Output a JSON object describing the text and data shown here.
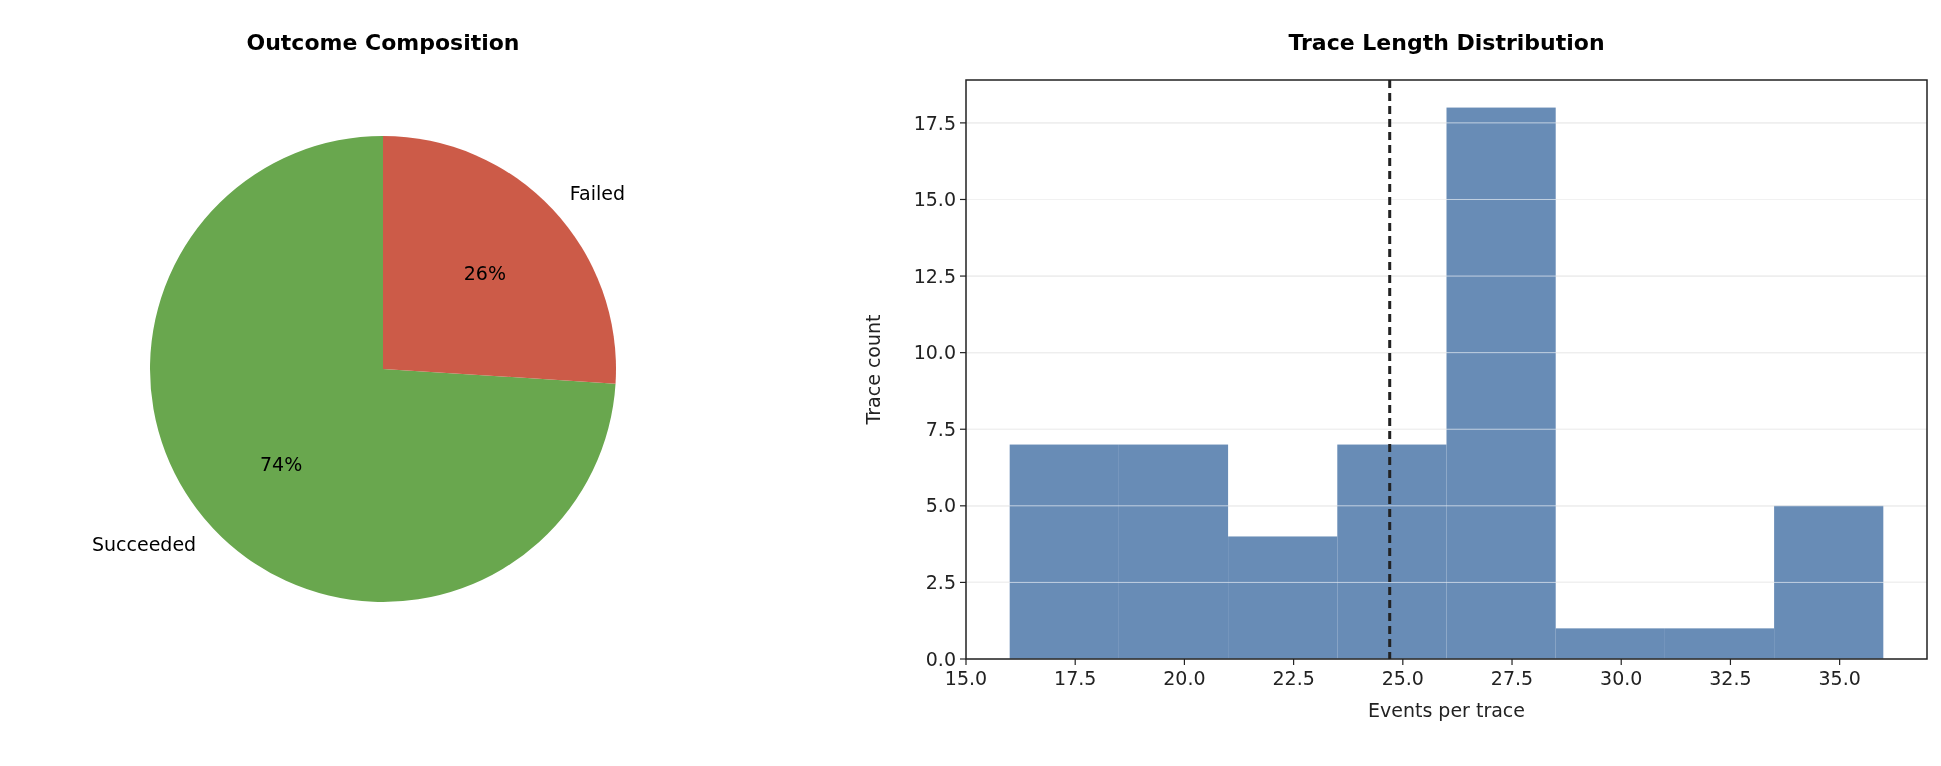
{
  "chart_data": [
    {
      "type": "pie",
      "title": "Outcome Composition",
      "categories": [
        "Succeeded",
        "Failed"
      ],
      "values": [
        74,
        26
      ],
      "colors": [
        "#69a74e",
        "#cc5b48"
      ],
      "value_labels": [
        "74%",
        "26%"
      ]
    },
    {
      "type": "histogram",
      "title": "Trace Length Distribution",
      "xlabel": "Events per trace",
      "ylabel": "Trace count",
      "bins": [
        16,
        18.5,
        21,
        23.5,
        26,
        28.5,
        31,
        33.5,
        36
      ],
      "values": [
        7,
        7,
        4,
        7,
        18,
        1,
        1,
        5
      ],
      "color": "#688cb6",
      "xlim": [
        15,
        37
      ],
      "xticks": [
        {
          "value": 15,
          "label": "15.0"
        },
        {
          "value": 17.5,
          "label": "17.5"
        },
        {
          "value": 20,
          "label": "20.0"
        },
        {
          "value": 22.5,
          "label": "22.5"
        },
        {
          "value": 25,
          "label": "25.0"
        },
        {
          "value": 27.5,
          "label": "27.5"
        },
        {
          "value": 30,
          "label": "30.0"
        },
        {
          "value": 32.5,
          "label": "32.5"
        },
        {
          "value": 35,
          "label": "35.0"
        }
      ],
      "ylim": [
        0,
        18.9
      ],
      "yticks": [
        {
          "value": 0,
          "label": "0.0"
        },
        {
          "value": 2.5,
          "label": "2.5"
        },
        {
          "value": 5,
          "label": "5.0"
        },
        {
          "value": 7.5,
          "label": "7.5"
        },
        {
          "value": 10,
          "label": "10.0"
        },
        {
          "value": 12.5,
          "label": "12.5"
        },
        {
          "value": 15,
          "label": "15.0"
        },
        {
          "value": 17.5,
          "label": "17.5"
        }
      ],
      "grid": "y",
      "ref_lines": [
        {
          "axis": "x",
          "value": 24.7,
          "color": "#222222",
          "line_style": "dashed"
        }
      ]
    }
  ]
}
